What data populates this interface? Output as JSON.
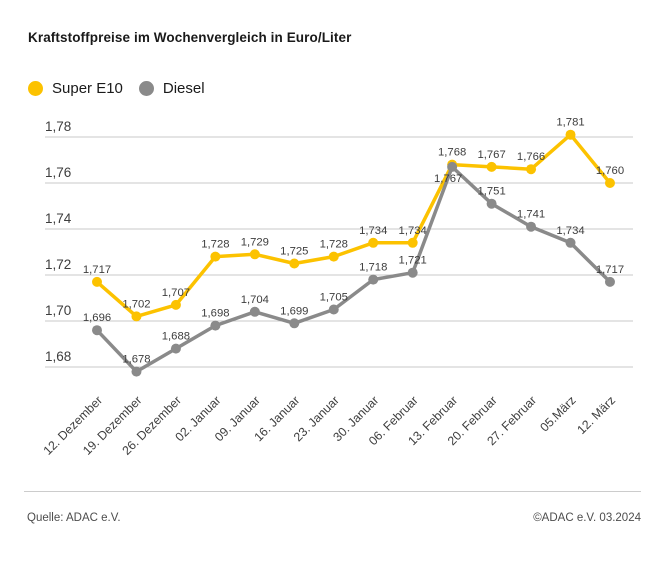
{
  "title": "Kraftstoffpreise im Wochenvergleich in Euro/Liter",
  "footer": {
    "source": "Quelle: ADAC e.V.",
    "copyright": "©ADAC e.V. 03.2024"
  },
  "colors": {
    "super_e10": "#fcc200",
    "diesel": "#8a8a8a",
    "gridline": "#c9c9c9",
    "text": "#3d3d3d"
  },
  "chart_data": {
    "type": "line",
    "title": "Kraftstoffpreise im Wochenvergleich in Euro/Liter",
    "xlabel": "",
    "ylabel": "Euro/Liter",
    "grid": true,
    "legend_position": "top-left",
    "ylim": [
      1.67,
      1.79
    ],
    "yticks": [
      1.68,
      1.7,
      1.72,
      1.74,
      1.76,
      1.78
    ],
    "categories": [
      "12. Dezember",
      "19. Dezember",
      "26. Dezember",
      "02. Januar",
      "09. Januar",
      "16. Januar",
      "23. Januar",
      "30. Januar",
      "06. Februar",
      "13. Februar",
      "20. Februar",
      "27. Februar",
      "05.März",
      "12. März"
    ],
    "series": [
      {
        "name": "Super E10",
        "color": "#fcc200",
        "values": [
          1.717,
          1.702,
          1.707,
          1.728,
          1.729,
          1.725,
          1.728,
          1.734,
          1.734,
          1.768,
          1.767,
          1.766,
          1.781,
          1.76
        ]
      },
      {
        "name": "Diesel",
        "color": "#8a8a8a",
        "values": [
          1.696,
          1.678,
          1.688,
          1.698,
          1.704,
          1.699,
          1.705,
          1.718,
          1.721,
          1.767,
          1.751,
          1.741,
          1.734,
          1.717
        ]
      }
    ]
  }
}
